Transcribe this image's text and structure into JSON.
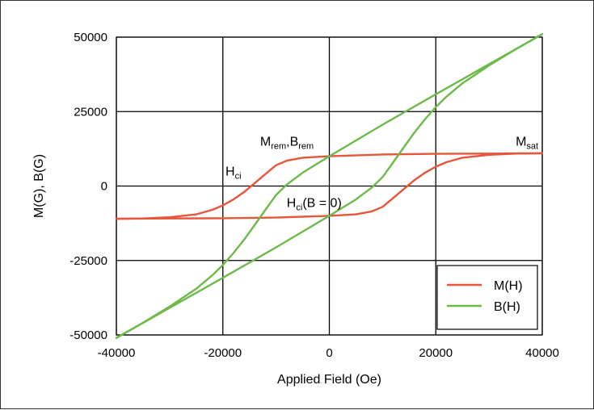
{
  "chart_data": {
    "type": "line",
    "title": "",
    "xlabel": "Applied Field (Oe)",
    "ylabel": "M(G), B(G)",
    "xlim": [
      -40000,
      40000
    ],
    "ylim": [
      -50000,
      50000
    ],
    "xticks": [
      -40000,
      -20000,
      0,
      20000,
      40000
    ],
    "yticks": [
      -50000,
      -25000,
      0,
      25000,
      50000
    ],
    "xtick_labels": [
      "-40000",
      "-20000",
      "0",
      "20000",
      "40000"
    ],
    "ytick_labels": [
      "-50000",
      "-25000",
      "0",
      "25000",
      "50000"
    ],
    "grid": true,
    "legend_position": "bottom-right",
    "series": [
      {
        "name": "M(H)",
        "color": "#e8553a",
        "branches": [
          {
            "x": [
              40000,
              30000,
              20000,
              10000,
              0,
              -5000,
              -8000,
              -10000,
              -12000,
              -14000,
              -16000,
              -18000,
              -20000,
              -22000,
              -25000,
              -30000,
              -35000,
              -40000
            ],
            "y": [
              11000,
              10900,
              10800,
              10600,
              10000,
              9500,
              8500,
              7000,
              4000,
              1000,
              -2000,
              -4500,
              -6500,
              -8000,
              -9500,
              -10500,
              -10900,
              -11000
            ]
          },
          {
            "x": [
              -40000,
              -30000,
              -20000,
              -10000,
              0,
              5000,
              8000,
              10000,
              12000,
              14000,
              16000,
              18000,
              20000,
              22000,
              25000,
              30000,
              35000,
              40000
            ],
            "y": [
              -11000,
              -10900,
              -10800,
              -10600,
              -10000,
              -9500,
              -8500,
              -7000,
              -4000,
              -1000,
              2000,
              4500,
              6500,
              8000,
              9500,
              10500,
              10900,
              11000
            ]
          }
        ]
      },
      {
        "name": "B(H)",
        "color": "#6cba47",
        "branches": [
          {
            "x": [
              40000,
              30000,
              20000,
              10000,
              0,
              -5000,
              -8000,
              -10000,
              -12000,
              -14000,
              -16000,
              -18000,
              -20000,
              -22000,
              -25000,
              -30000,
              -35000,
              -40000
            ],
            "y": [
              51000,
              40900,
              30800,
              20600,
              10000,
              4500,
              500,
              -3000,
              -8000,
              -13000,
              -18000,
              -22500,
              -26500,
              -30000,
              -34500,
              -40500,
              -45900,
              -51000
            ]
          },
          {
            "x": [
              -40000,
              -30000,
              -20000,
              -10000,
              0,
              5000,
              8000,
              10000,
              12000,
              14000,
              16000,
              18000,
              20000,
              22000,
              25000,
              30000,
              35000,
              40000
            ],
            "y": [
              -51000,
              -40900,
              -30800,
              -20600,
              -10000,
              -4500,
              -500,
              3000,
              8000,
              13000,
              18000,
              22500,
              26500,
              30000,
              34500,
              40500,
              45900,
              51000
            ]
          }
        ]
      }
    ],
    "annotations": [
      {
        "main": "M",
        "sub": "sat",
        "tail": "",
        "x": 35000,
        "y": 13500
      },
      {
        "main": "M",
        "sub": "rem",
        "tail": ",B",
        "sub2": "rem",
        "x": -13000,
        "y": 13500
      },
      {
        "main": "H",
        "sub": "ci",
        "tail": "",
        "x": -19500,
        "y": 3500
      },
      {
        "main": "H",
        "sub": "ci",
        "tail": "(B = 0)",
        "x": -8000,
        "y": -7000
      }
    ]
  }
}
